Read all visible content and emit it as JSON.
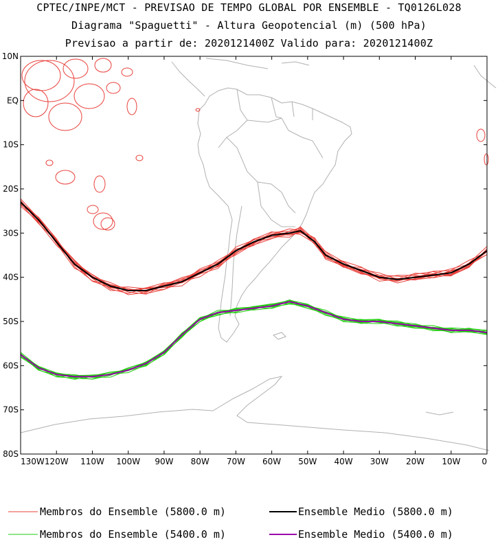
{
  "header": {
    "line1": "CPTEC/INPE/MCT - PREVISAO DE TEMPO GLOBAL POR ENSEMBLE - TQ0126L028",
    "line2": "Diagrama \"Spaguetti\" - Altura Geopotencial (m) (500 hPa)",
    "line3": "Previsao a partir de: 2020121400Z  Valido para: 2020121400Z"
  },
  "axes": {
    "lat_labels": [
      "10N",
      "EQ",
      "10S",
      "20S",
      "30S",
      "40S",
      "50S",
      "60S",
      "70S",
      "80S"
    ],
    "lon_labels": [
      "130W",
      "120W",
      "110W",
      "100W",
      "90W",
      "80W",
      "70W",
      "60W",
      "50W",
      "40W",
      "30W",
      "20W",
      "10W",
      "0"
    ]
  },
  "legend": {
    "red_members": "Membros do Ensemble (5800.0 m)",
    "red_mean": "Ensemble Medio (5800.0 m)",
    "green_members": "Membros do Ensemble (5400.0 m)",
    "green_mean": "Ensemble Medio (5400.0 m)"
  },
  "colors": {
    "red": "#e8403a",
    "green": "#22cc11",
    "mean_5800": "#000000",
    "mean_5400": "#9900aa",
    "coast": "#b0b0b0"
  },
  "map_data": {
    "contour_5800_mean": [
      [
        -130,
        -23
      ],
      [
        -125,
        -27
      ],
      [
        -120,
        -32
      ],
      [
        -115,
        -37
      ],
      [
        -110,
        -40
      ],
      [
        -105,
        -42
      ],
      [
        -100,
        -43
      ],
      [
        -95,
        -43
      ],
      [
        -90,
        -42
      ],
      [
        -85,
        -41
      ],
      [
        -80,
        -39
      ],
      [
        -75,
        -37
      ],
      [
        -70,
        -34
      ],
      [
        -65,
        -32
      ],
      [
        -60,
        -30.5
      ],
      [
        -55,
        -30
      ],
      [
        -52,
        -29.5
      ],
      [
        -48,
        -32
      ],
      [
        -45,
        -35
      ],
      [
        -40,
        -37
      ],
      [
        -35,
        -38.5
      ],
      [
        -30,
        -40
      ],
      [
        -25,
        -40.5
      ],
      [
        -20,
        -40
      ],
      [
        -15,
        -39.5
      ],
      [
        -10,
        -39
      ],
      [
        -5,
        -37
      ],
      [
        0,
        -34
      ]
    ],
    "contour_5400_mean": [
      [
        -130,
        -57.5
      ],
      [
        -125,
        -60.5
      ],
      [
        -120,
        -62
      ],
      [
        -115,
        -62.5
      ],
      [
        -110,
        -62.5
      ],
      [
        -105,
        -62
      ],
      [
        -100,
        -61
      ],
      [
        -95,
        -59.5
      ],
      [
        -90,
        -57
      ],
      [
        -85,
        -53
      ],
      [
        -80,
        -49.5
      ],
      [
        -75,
        -48
      ],
      [
        -70,
        -47.5
      ],
      [
        -65,
        -47
      ],
      [
        -60,
        -46.5
      ],
      [
        -55,
        -45.5
      ],
      [
        -50,
        -46.5
      ],
      [
        -45,
        -48
      ],
      [
        -40,
        -49.5
      ],
      [
        -35,
        -50
      ],
      [
        -30,
        -50
      ],
      [
        -25,
        -50.5
      ],
      [
        -20,
        -51
      ],
      [
        -15,
        -51.5
      ],
      [
        -10,
        -52
      ],
      [
        -5,
        -52
      ],
      [
        0,
        -52.5
      ]
    ]
  }
}
